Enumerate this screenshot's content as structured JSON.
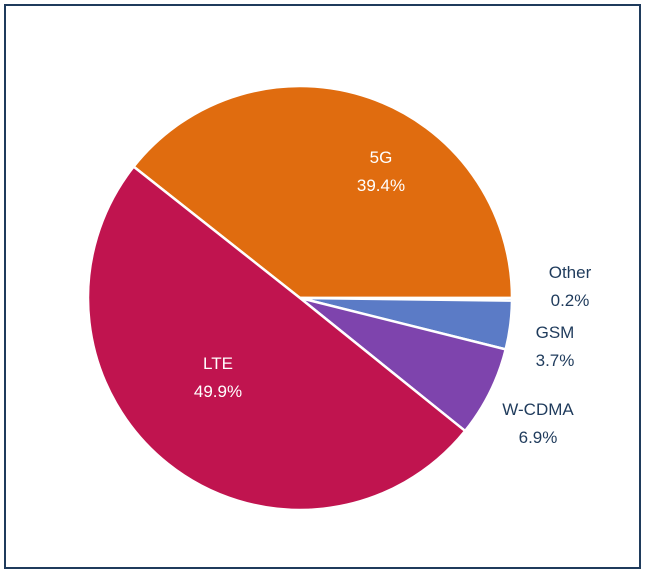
{
  "chart_data": {
    "type": "pie",
    "slices": [
      {
        "label": "5G",
        "percent_label": "39.4%",
        "value": 39.4,
        "color": "#e06c0f",
        "label_position": "inside"
      },
      {
        "label": "Other",
        "percent_label": "0.2%",
        "value": 0.2,
        "color": "#4472c4",
        "label_position": "outside"
      },
      {
        "label": "GSM",
        "percent_label": "3.7%",
        "value": 3.7,
        "color": "#5b7bc6",
        "label_position": "outside"
      },
      {
        "label": "W-CDMA",
        "percent_label": "6.9%",
        "value": 6.9,
        "color": "#7e44ad",
        "label_position": "outside"
      },
      {
        "label": "LTE",
        "percent_label": "49.9%",
        "value": 49.9,
        "color": "#c0144f",
        "label_position": "inside"
      }
    ],
    "legend": "none"
  }
}
